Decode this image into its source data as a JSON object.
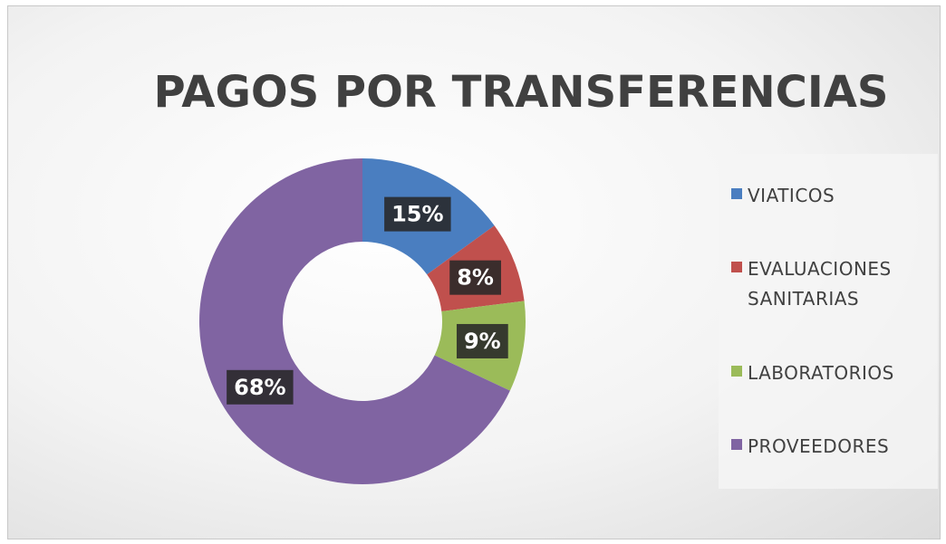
{
  "chart_data": {
    "type": "doughnut",
    "title": "PAGOS POR TRANSFERENCIAS",
    "categories": [
      "VIATICOS",
      "EVALUACIONES SANITARIAS",
      "LABORATORIOS",
      "PROVEEDORES"
    ],
    "values": [
      15,
      8,
      9,
      68
    ],
    "value_labels": [
      "15%",
      "8%",
      "9%",
      "68%"
    ],
    "colors": [
      "#4a7ec0",
      "#c0504d",
      "#9bbb59",
      "#8064a2"
    ],
    "legend": "right"
  }
}
